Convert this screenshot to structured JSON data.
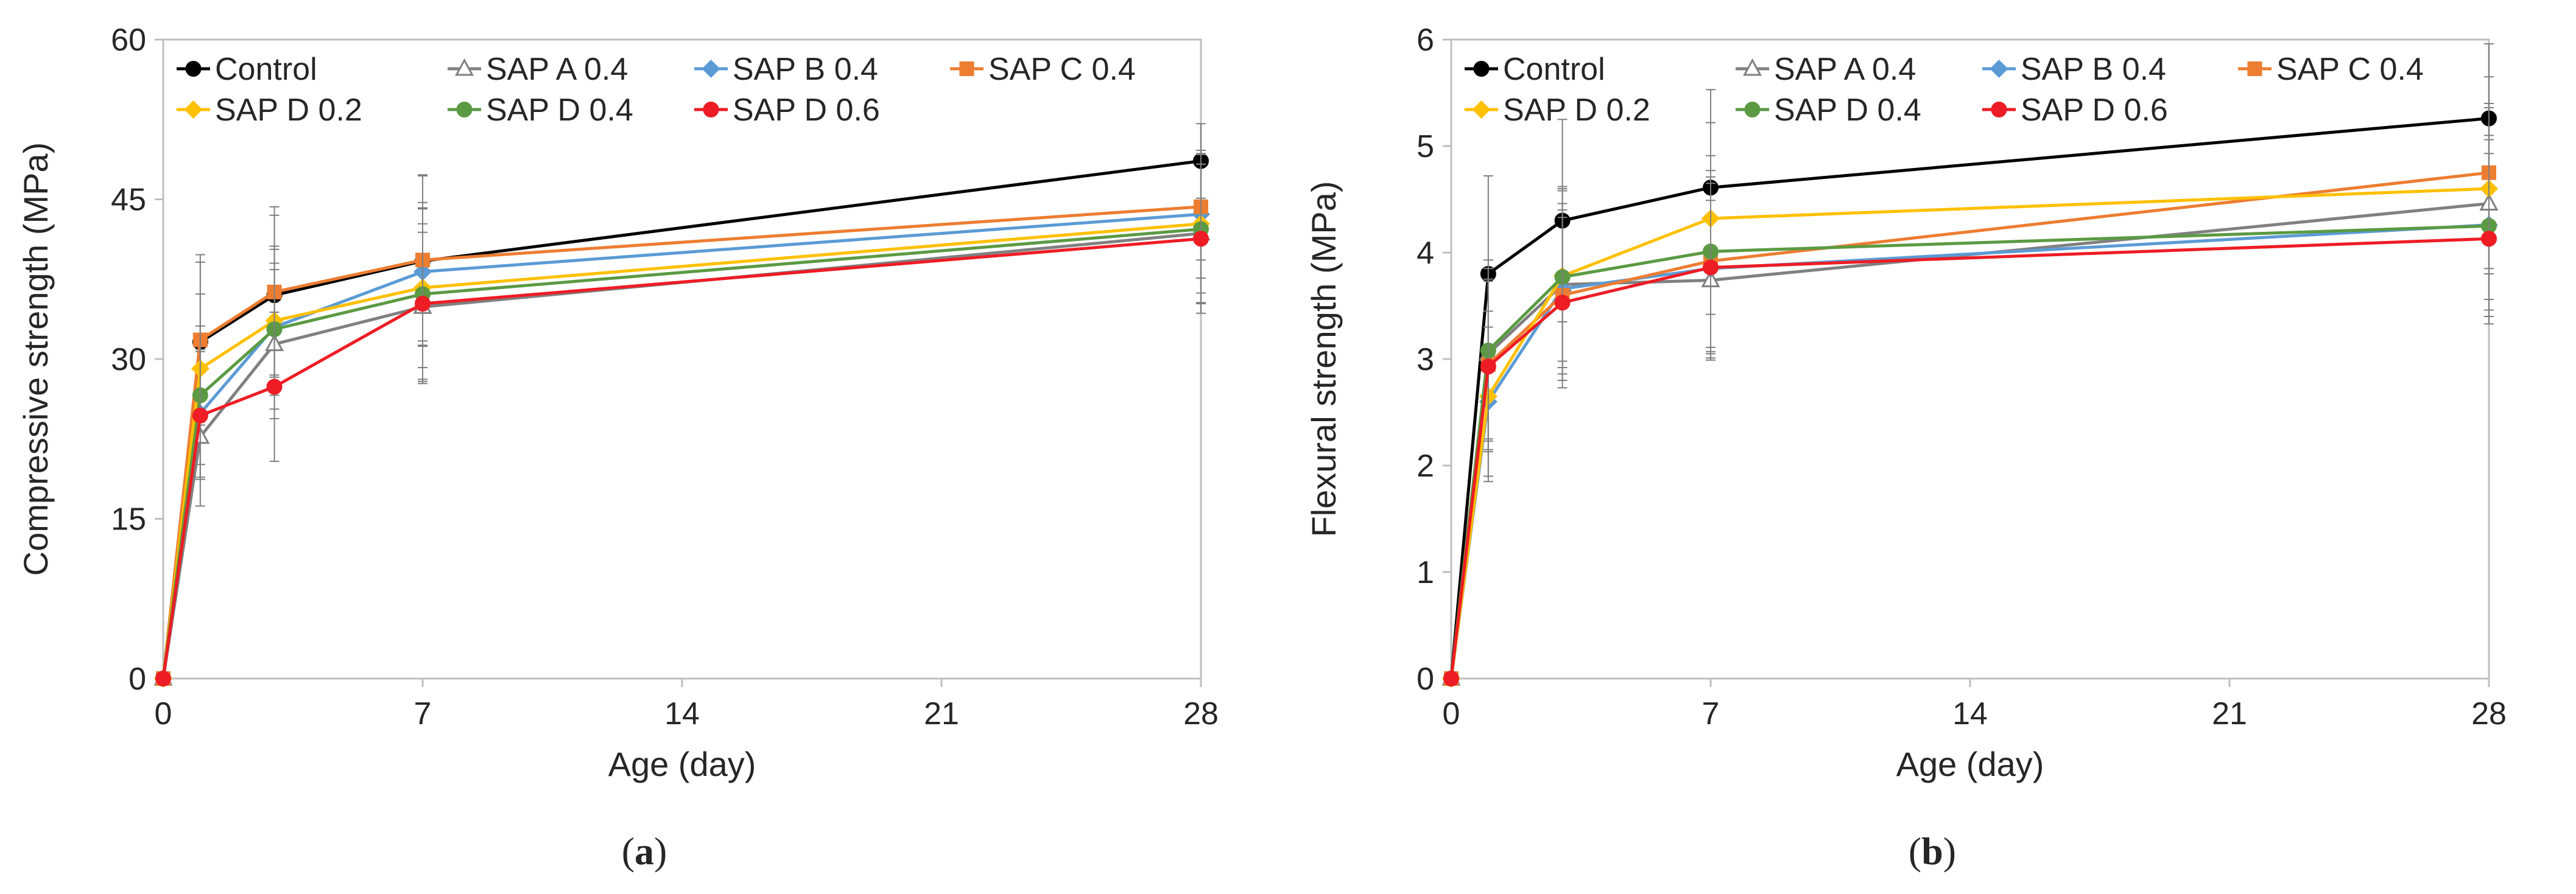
{
  "chart_data": [
    {
      "type": "line",
      "panel_label": "a",
      "title": "",
      "xlabel": "Age (day)",
      "ylabel": "Compressive strength (MPa)",
      "xlim": [
        0,
        28
      ],
      "ylim": [
        0,
        60
      ],
      "xticks": [
        0,
        7,
        14,
        21,
        28
      ],
      "yticks": [
        0,
        15,
        30,
        45,
        60
      ],
      "grid": false,
      "legend": "top-left inside",
      "x": [
        0,
        1,
        3,
        7,
        28
      ],
      "series": [
        {
          "name": "Control",
          "color": "#000000",
          "marker": "circle",
          "values": [
            0,
            31.6,
            36.0,
            39.2,
            48.6
          ],
          "errors": [
            0,
            7.5,
            7.5,
            8.0,
            3.5
          ]
        },
        {
          "name": "SAP A 0.4",
          "color": "#808080",
          "marker": "triangle",
          "values": [
            0,
            22.7,
            31.4,
            34.9,
            41.8
          ],
          "errors": [
            0,
            6.5,
            7.0,
            7.0,
            6.5
          ]
        },
        {
          "name": "SAP B 0.4",
          "color": "#5b9bd5",
          "marker": "diamond",
          "values": [
            0,
            24.9,
            33.0,
            38.2,
            43.6
          ],
          "errors": [
            0,
            6.0,
            6.0,
            6.5,
            6.0
          ]
        },
        {
          "name": "SAP C 0.4",
          "color": "#ed7d31",
          "marker": "square",
          "values": [
            0,
            31.8,
            36.3,
            39.3,
            44.3
          ],
          "errors": [
            0,
            8.0,
            8.0,
            8.0,
            5.0
          ]
        },
        {
          "name": "SAP D 0.2",
          "color": "#ffc000",
          "marker": "diamond",
          "values": [
            0,
            29.1,
            33.6,
            36.7,
            42.7
          ],
          "errors": [
            0,
            7.0,
            7.0,
            7.5,
            6.5
          ]
        },
        {
          "name": "SAP D 0.4",
          "color": "#5b9a42",
          "marker": "circle",
          "values": [
            0,
            26.6,
            32.8,
            36.1,
            42.2
          ],
          "errors": [
            0,
            6.5,
            7.5,
            8.0,
            7.0
          ]
        },
        {
          "name": "SAP D 0.6",
          "color": "#ee1c24",
          "marker": "circle",
          "values": [
            0,
            24.7,
            27.4,
            35.2,
            41.3
          ],
          "errors": [
            0,
            6.0,
            7.0,
            7.5,
            7.0
          ]
        }
      ]
    },
    {
      "type": "line",
      "panel_label": "b",
      "title": "",
      "xlabel": "Age (day)",
      "ylabel": "Flexural strength (MPa)",
      "xlim": [
        0,
        28
      ],
      "ylim": [
        0,
        6
      ],
      "xticks": [
        0,
        7,
        14,
        21,
        28
      ],
      "yticks": [
        0,
        1,
        2,
        3,
        4,
        5,
        6
      ],
      "grid": false,
      "legend": "top-left inside",
      "x": [
        0,
        1,
        3,
        7,
        28
      ],
      "series": [
        {
          "name": "Control",
          "color": "#000000",
          "marker": "circle",
          "values": [
            0,
            3.8,
            4.3,
            4.61,
            5.26
          ],
          "errors": [
            0,
            0.92,
            0.95,
            0.92,
            0.7
          ]
        },
        {
          "name": "SAP A 0.4",
          "color": "#808080",
          "marker": "triangle",
          "values": [
            0,
            3.05,
            3.7,
            3.74,
            4.46
          ],
          "errors": [
            0,
            0.8,
            0.9,
            0.75,
            0.9
          ]
        },
        {
          "name": "SAP B 0.4",
          "color": "#5b9bd5",
          "marker": "diamond",
          "values": [
            0,
            2.6,
            3.66,
            3.85,
            4.26
          ],
          "errors": [
            0,
            0.7,
            0.8,
            0.8,
            0.8
          ]
        },
        {
          "name": "SAP C 0.4",
          "color": "#ed7d31",
          "marker": "square",
          "values": [
            0,
            2.95,
            3.6,
            3.92,
            4.75
          ],
          "errors": [
            0,
            0.8,
            0.8,
            0.85,
            0.9
          ]
        },
        {
          "name": "SAP D 0.2",
          "color": "#ffc000",
          "marker": "diamond",
          "values": [
            0,
            2.65,
            3.78,
            4.32,
            4.6
          ],
          "errors": [
            0,
            0.8,
            0.8,
            0.9,
            0.8
          ]
        },
        {
          "name": "SAP D 0.4",
          "color": "#5b9a42",
          "marker": "circle",
          "values": [
            0,
            3.08,
            3.77,
            4.01,
            4.25
          ],
          "errors": [
            0,
            0.85,
            0.85,
            0.9,
            0.85
          ]
        },
        {
          "name": "SAP D 0.6",
          "color": "#ee1c24",
          "marker": "circle",
          "values": [
            0,
            2.93,
            3.53,
            3.86,
            4.13
          ],
          "errors": [
            0,
            0.8,
            0.8,
            0.85,
            0.8
          ]
        }
      ]
    }
  ]
}
